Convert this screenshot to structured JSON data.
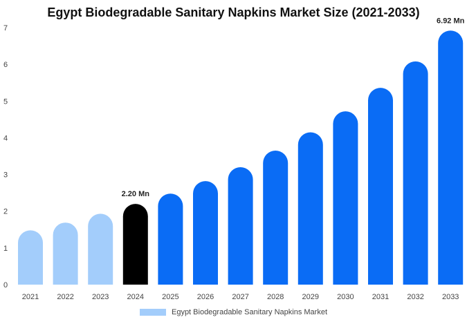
{
  "chart_data": {
    "type": "bar",
    "title": "Egypt Biodegradable Sanitary Napkins Market Size (2021-2033)",
    "categories": [
      "2021",
      "2022",
      "2023",
      "2024",
      "2025",
      "2026",
      "2027",
      "2028",
      "2029",
      "2030",
      "2031",
      "2032",
      "2033"
    ],
    "series": [
      {
        "name": "Egypt Biodegradable Sanitary Napkins Market",
        "values": [
          1.48,
          1.69,
          1.93,
          2.2,
          2.48,
          2.82,
          3.2,
          3.65,
          4.15,
          4.72,
          5.36,
          6.08,
          6.92
        ]
      }
    ],
    "data_labels": {
      "3": "2.20 Mn",
      "12": "6.92 Mn"
    },
    "ylim": [
      0,
      7
    ],
    "yticks": [
      0,
      1,
      2,
      3,
      4,
      5,
      6,
      7
    ],
    "grid": false,
    "legend_position": "bottom",
    "colors": {
      "historic": "#a3cdfb",
      "base_year": "#000000",
      "forecast": "#0a6cf5",
      "legend": "#a3cdfb"
    },
    "bar_styles": [
      "historic",
      "historic",
      "historic",
      "base_year",
      "forecast",
      "forecast",
      "forecast",
      "forecast",
      "forecast",
      "forecast",
      "forecast",
      "forecast",
      "forecast"
    ]
  }
}
